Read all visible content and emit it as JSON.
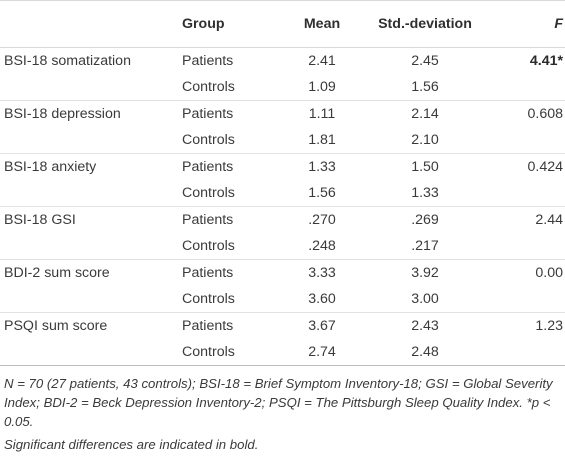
{
  "table": {
    "headers": {
      "variable": "",
      "group": "Group",
      "mean": "Mean",
      "sd": "Std.-deviation",
      "f": "F"
    },
    "rows": [
      {
        "variable": "BSI-18 somatization",
        "group": "Patients",
        "mean": "2.41",
        "sd": "2.45",
        "f": "4.41*",
        "f_bold": true
      },
      {
        "variable": "",
        "group": "Controls",
        "mean": "1.09",
        "sd": "1.56",
        "f": ""
      },
      {
        "variable": "BSI-18 depression",
        "group": "Patients",
        "mean": "1.11",
        "sd": "2.14",
        "f": "0.608"
      },
      {
        "variable": "",
        "group": "Controls",
        "mean": "1.81",
        "sd": "2.10",
        "f": ""
      },
      {
        "variable": "BSI-18 anxiety",
        "group": "Patients",
        "mean": "1.33",
        "sd": "1.50",
        "f": "0.424"
      },
      {
        "variable": "",
        "group": "Controls",
        "mean": "1.56",
        "sd": "1.33",
        "f": ""
      },
      {
        "variable": "BSI-18 GSI",
        "group": "Patients",
        "mean": ".270",
        "sd": ".269",
        "f": "2.44"
      },
      {
        "variable": "",
        "group": "Controls",
        "mean": ".248",
        "sd": ".217",
        "f": ""
      },
      {
        "variable": "BDI-2 sum score",
        "group": "Patients",
        "mean": "3.33",
        "sd": "3.92",
        "f": "0.00"
      },
      {
        "variable": "",
        "group": "Controls",
        "mean": "3.60",
        "sd": "3.00",
        "f": ""
      },
      {
        "variable": "PSQI sum score",
        "group": "Patients",
        "mean": "3.67",
        "sd": "2.43",
        "f": "1.23"
      },
      {
        "variable": "",
        "group": "Controls",
        "mean": "2.74",
        "sd": "2.48",
        "f": ""
      }
    ]
  },
  "notes": {
    "abbreviations": "N = 70 (27 patients, 43 controls); BSI-18 = Brief Symptom Inventory-18; GSI = Global Severity Index; BDI-2 = Beck Depression Inventory-2; PSQI = The Pittsburgh Sleep Quality Index. *p < 0.05.",
    "significance": "Significant differences are indicated in bold."
  }
}
